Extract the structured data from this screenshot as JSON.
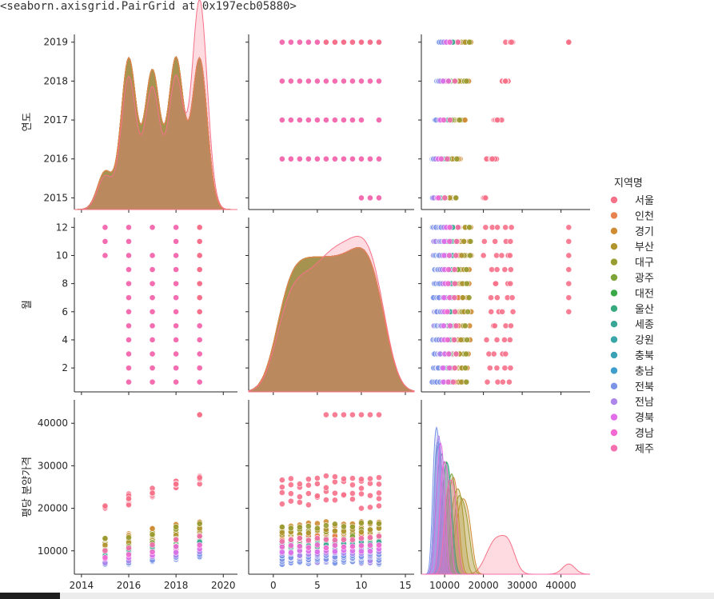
{
  "output_repr": "<seaborn.axisgrid.PairGrid at 0x197ecb05880>",
  "chart_data": {
    "type": "pairplot",
    "variables": [
      "연도",
      "월",
      "평당 분양가격"
    ],
    "variable_labels": [
      "연도",
      "월",
      "평당 분양가격"
    ],
    "hue": "지역명",
    "legend_title": "지역명",
    "legend_position": "right",
    "regions": [
      "서울",
      "인천",
      "경기",
      "부산",
      "대구",
      "광주",
      "대전",
      "울산",
      "세종",
      "강원",
      "충북",
      "충남",
      "전북",
      "전남",
      "경북",
      "경남",
      "제주"
    ],
    "palette": [
      "#f77189",
      "#e8824f",
      "#cf8c34",
      "#b0952f",
      "#999c31",
      "#7da436",
      "#3ba946",
      "#37aa7d",
      "#39a795",
      "#3aa5a7",
      "#3ba2b6",
      "#3e9dcb",
      "#7b94e8",
      "#ad86ec",
      "#e06fe9",
      "#f46ad2",
      "#f56ead"
    ],
    "axis_ranges": {
      "연도": [
        2014.7,
        2019.2
      ],
      "연도_x": [
        2013.7,
        2020.6
      ],
      "월": [
        0.3,
        12.7
      ],
      "월_x": [
        -2.8,
        16.0
      ],
      "평당 분양가격": [
        4500,
        45500
      ],
      "평당 분양가격_x": [
        4000,
        47500
      ]
    },
    "ticks": {
      "연도": [
        2015,
        2016,
        2017,
        2018,
        2019
      ],
      "연도_x": [
        2014,
        2016,
        2018,
        2020
      ],
      "월": [
        2,
        4,
        6,
        8,
        10,
        12
      ],
      "월_x": [
        0,
        5,
        10,
        15
      ],
      "평당 분양가격": [
        10000,
        20000,
        30000,
        40000
      ],
      "평당 분양가격_x": [
        10000,
        20000,
        30000,
        40000
      ]
    },
    "months_by_year": {
      "2015": [
        10,
        11,
        12
      ],
      "2016": [
        1,
        2,
        3,
        4,
        5,
        6,
        7,
        8,
        9,
        10,
        11,
        12
      ],
      "2017": [
        1,
        2,
        3,
        4,
        5,
        6,
        7,
        8,
        9,
        10,
        12
      ],
      "2018": [
        1,
        2,
        3,
        4,
        5,
        6,
        7,
        8,
        9,
        10,
        11,
        12
      ],
      "2019": [
        1,
        2,
        3,
        4,
        5,
        6,
        7,
        8,
        9,
        10,
        11,
        12
      ]
    },
    "region_price_level": {
      "서울": 23000,
      "인천": 11500,
      "경기": 14000,
      "부산": 12500,
      "대구": 13500,
      "광주": 11000,
      "대전": 10000,
      "울산": 9500,
      "세종": 10000,
      "강원": 8500,
      "충북": 8000,
      "충남": 8000,
      "전북": 7500,
      "전남": 8000,
      "경북": 8500,
      "경남": 9500,
      "제주": 11000
    },
    "seoul_max_price": 42000,
    "year_kde_peaks": [
      2016,
      2017,
      2018,
      2019
    ],
    "month_kde_peak": 10
  }
}
